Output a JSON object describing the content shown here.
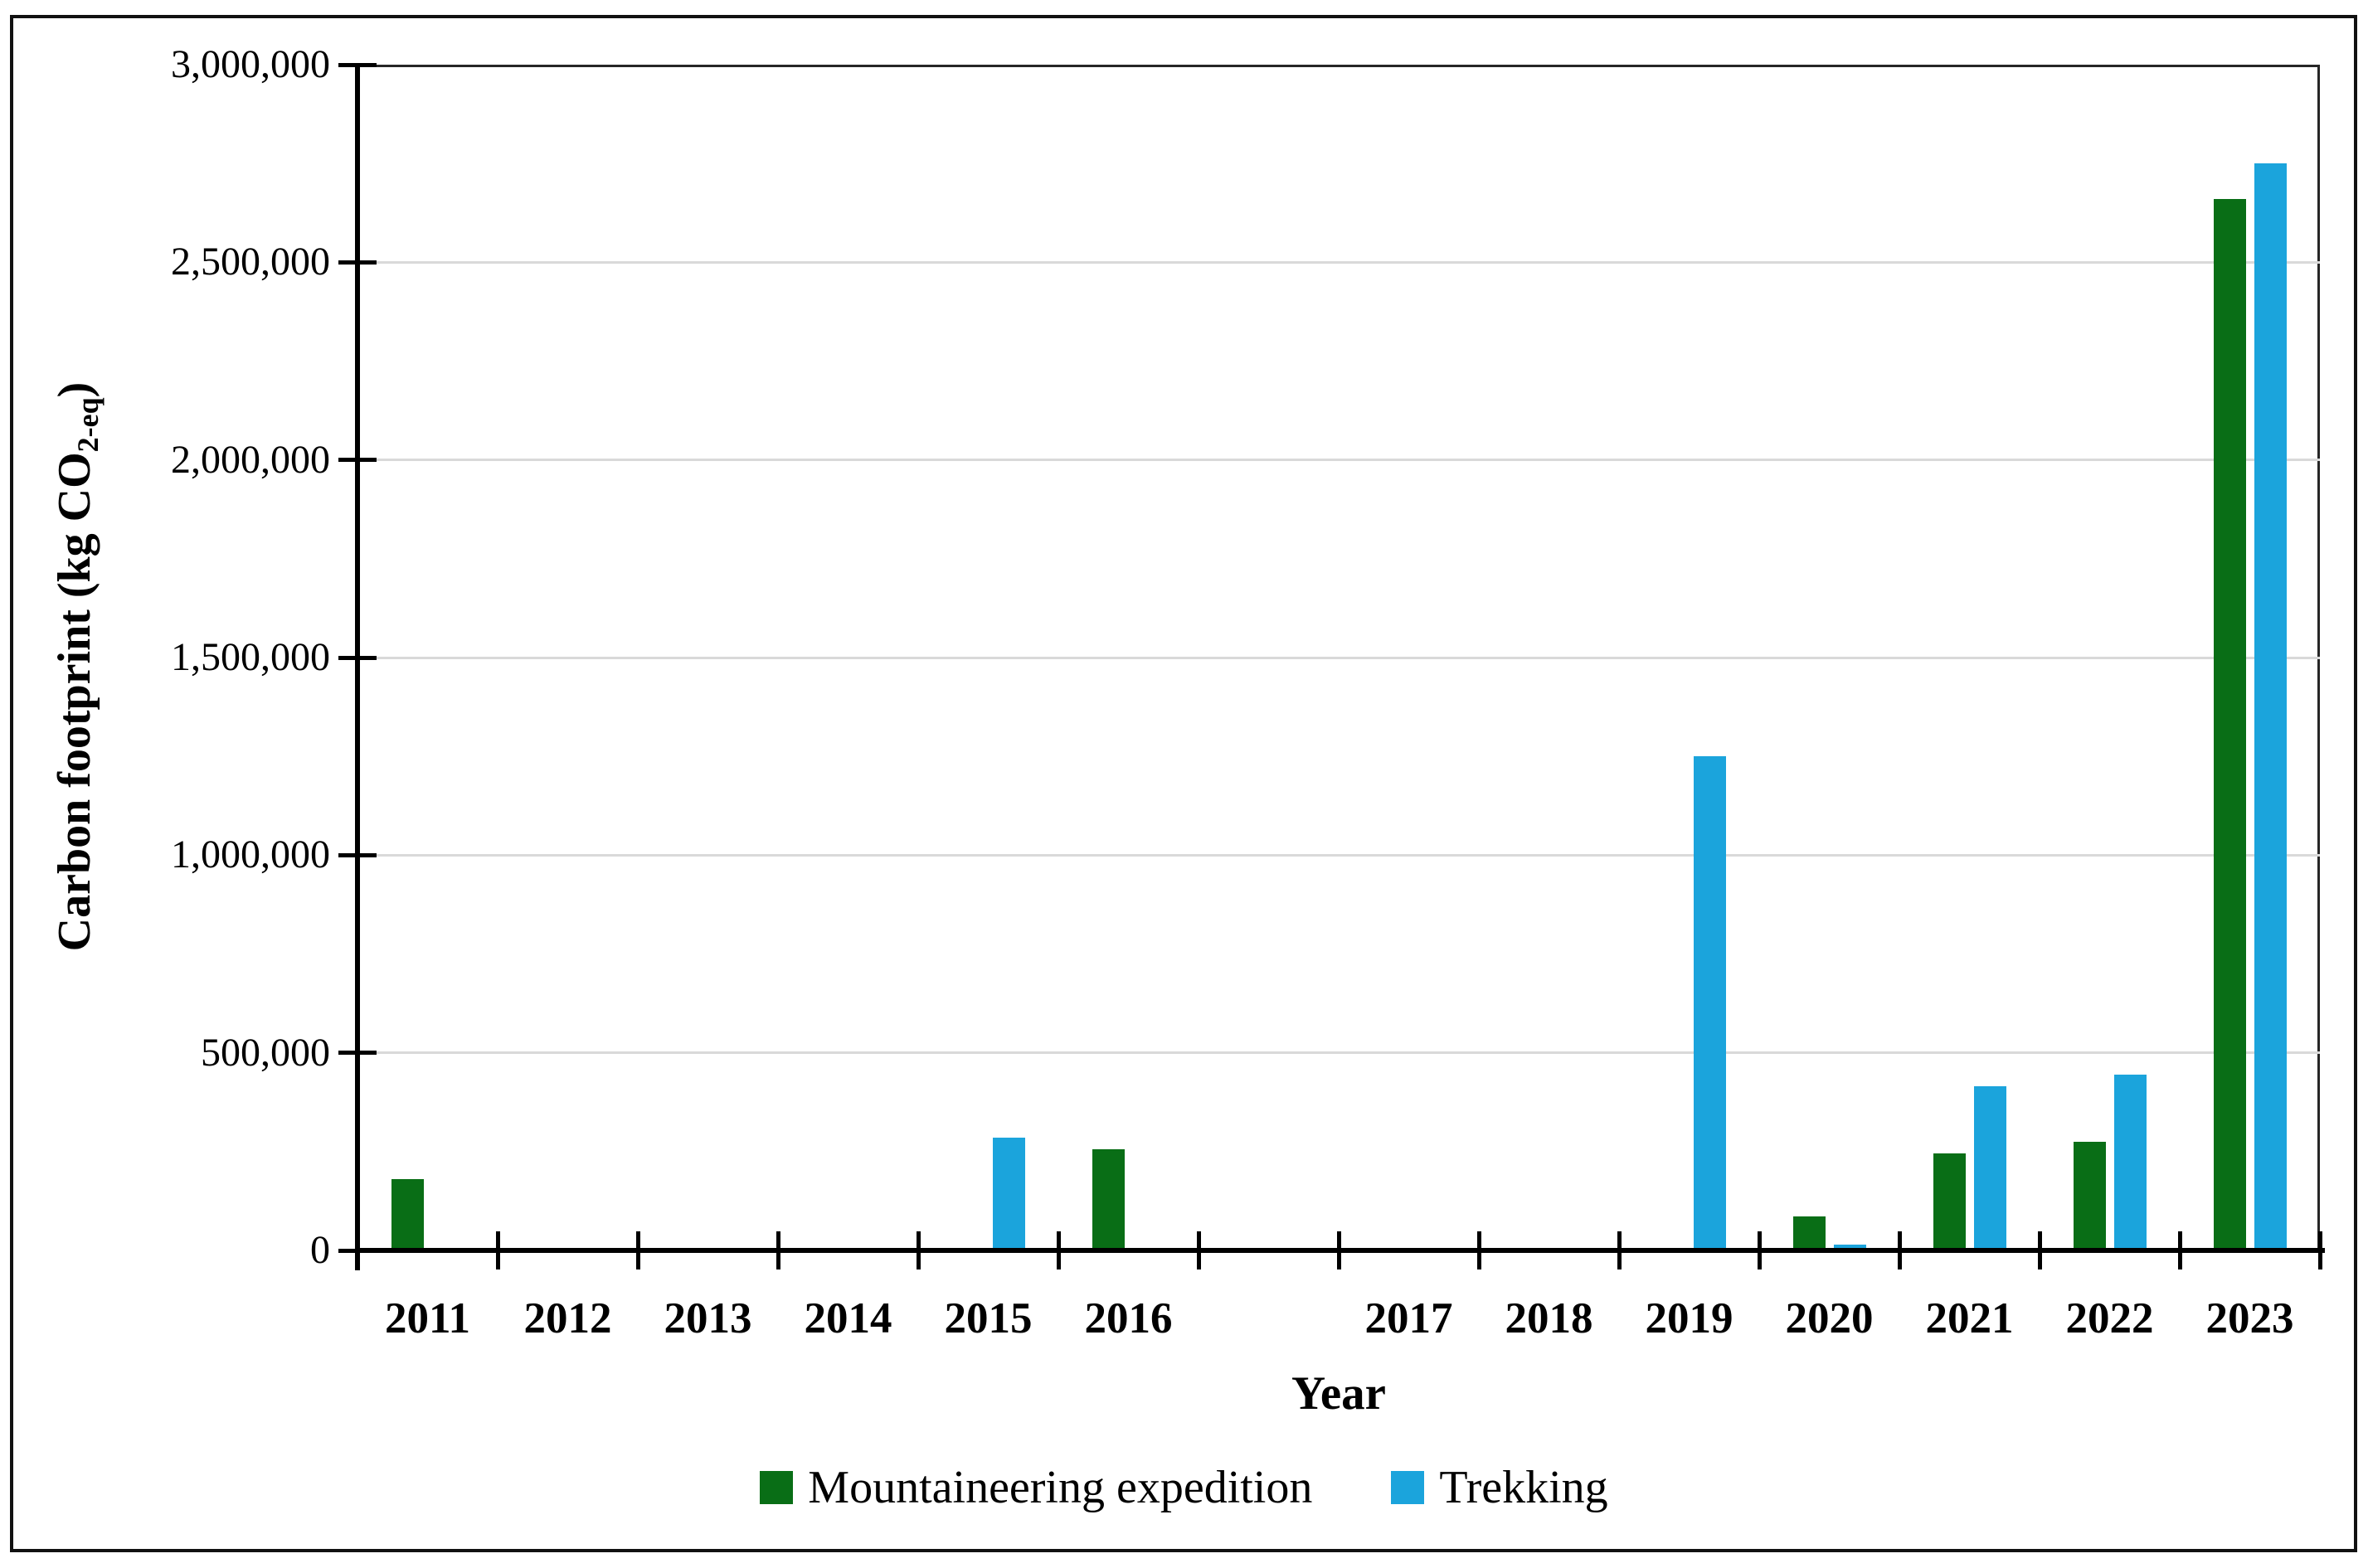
{
  "axes": {
    "x_title": "Year",
    "y_title_main": "Carbon footprint (kg CO",
    "y_title_sub": "2-eq",
    "y_title_close": ")"
  },
  "legend": [
    {
      "label": "Mountaineering expedition",
      "color": "#096e16"
    },
    {
      "label": "Trekking",
      "color": "#1ba4dc"
    }
  ],
  "colors": {
    "mountaineering_green": "#096e16",
    "trekking_blue": "#1ba4dc",
    "gridline_gray": "#d9d9d9",
    "axis_black": "#000000"
  },
  "chart_data": {
    "type": "bar",
    "title": "",
    "xlabel": "Year",
    "ylabel": "Carbon footprint (kg CO2-eq)",
    "categories": [
      "2011",
      "2012",
      "2013",
      "2014",
      "2015",
      "2016",
      "",
      "2017",
      "2018",
      "2019",
      "2020",
      "2021",
      "2022",
      "2023"
    ],
    "series": [
      {
        "name": "Mountaineering expedition",
        "color": "#096e16",
        "values": [
          180000,
          0,
          0,
          0,
          0,
          255000,
          0,
          0,
          0,
          0,
          85000,
          245000,
          275000,
          2660000
        ]
      },
      {
        "name": "Trekking",
        "color": "#1ba4dc",
        "values": [
          0,
          0,
          0,
          0,
          285000,
          0,
          0,
          0,
          0,
          1250000,
          15000,
          415000,
          445000,
          2750000
        ]
      }
    ],
    "ylim": [
      0,
      3000000
    ],
    "y_ticks": [
      0,
      500000,
      1000000,
      1500000,
      2000000,
      2500000,
      3000000
    ],
    "y_tick_labels": [
      "0",
      "500,000",
      "1,000,000",
      "1,500,000",
      "2,000,000",
      "2,500,000",
      "3,000,000"
    ],
    "grid": "horizontal-500000-steps",
    "legend_position": "bottom-center"
  }
}
